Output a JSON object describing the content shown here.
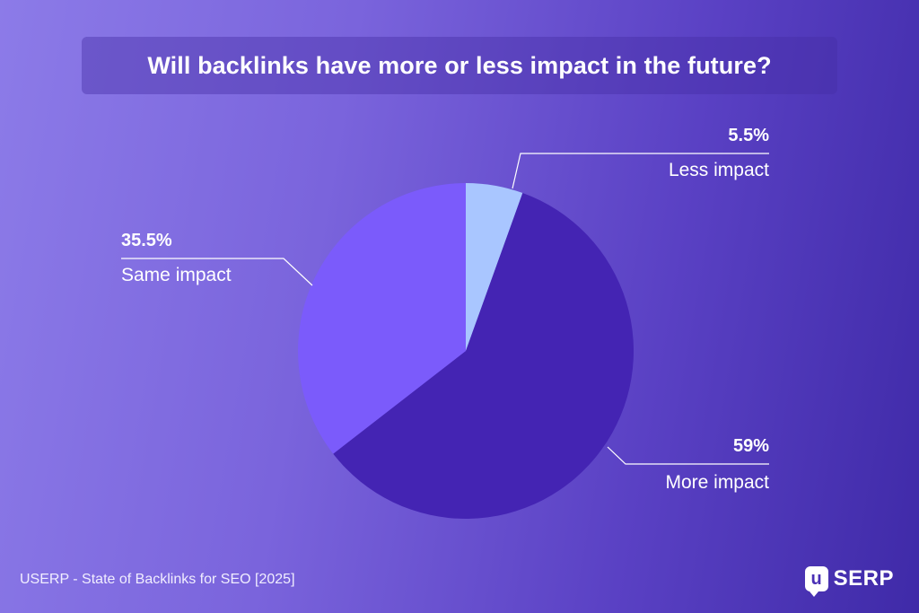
{
  "chart_data": {
    "type": "pie",
    "title": "Will backlinks have more or less impact in the future?",
    "slices": [
      {
        "label": "Less impact",
        "value": 5.5,
        "value_label": "5.5%",
        "color": "#a9c6ff"
      },
      {
        "label": "More impact",
        "value": 59,
        "value_label": "59%",
        "color": "#4424b3"
      },
      {
        "label": "Same impact",
        "value": 35.5,
        "value_label": "35.5%",
        "color": "#7b5bfb"
      }
    ],
    "start_angle_deg": 0,
    "direction": "clockwise"
  },
  "footer": {
    "source": "USERP - State of Backlinks for SEO [2025]",
    "logo_mark": "u",
    "logo_text": "SERP"
  }
}
